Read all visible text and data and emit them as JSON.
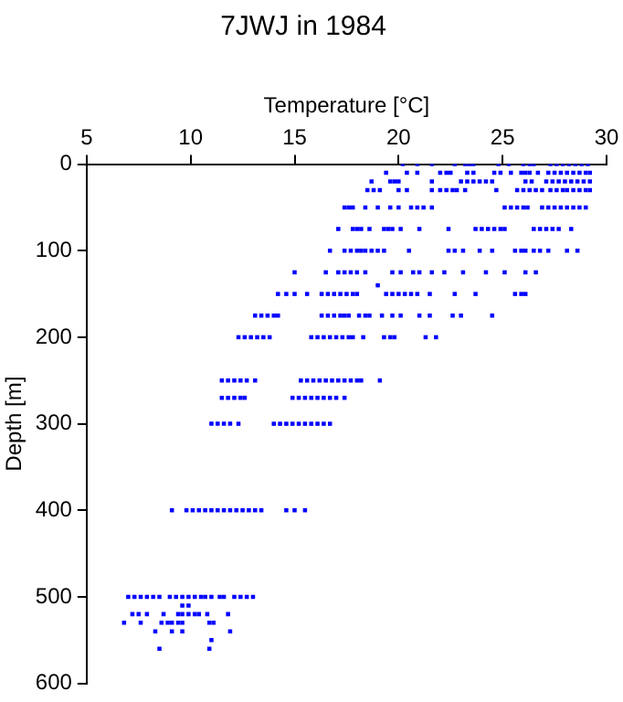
{
  "chart_data": {
    "type": "scatter",
    "title": "7JWJ in 1984",
    "xlabel": "Temperature [°C]",
    "ylabel": "Depth [m]",
    "xlim": [
      5,
      30
    ],
    "xticks": [
      5,
      10,
      15,
      20,
      25,
      30
    ],
    "ylim": [
      600,
      0
    ],
    "yticks": [
      0,
      100,
      200,
      300,
      400,
      500,
      600
    ],
    "grid": false,
    "marker": "square",
    "series": [
      {
        "color": "#0000ff",
        "x": [
          20.2,
          20.9,
          21.6,
          22.7,
          23.2,
          23.4,
          23.6,
          24.8,
          25.3,
          26.0,
          26.3,
          26.5,
          27.3,
          27.6,
          27.9,
          28.2,
          28.5,
          28.8,
          29.1
        ],
        "values": [
          0,
          0,
          0,
          0,
          0,
          0,
          0,
          0,
          0,
          0,
          0,
          0,
          0,
          0,
          0,
          0,
          0,
          0,
          0
        ]
      },
      {
        "color": "#0000ff",
        "x": [
          19.4,
          20.4,
          20.9,
          22.0,
          22.3,
          22.5,
          23.3,
          23.6,
          24.6,
          24.9,
          25.4,
          25.9,
          26.1,
          26.3,
          26.7,
          27.2,
          27.5,
          27.8,
          28.1,
          28.4,
          28.7,
          29.0,
          29.2
        ],
        "values": [
          10,
          10,
          10,
          10,
          10,
          10,
          10,
          10,
          10,
          10,
          10,
          10,
          10,
          10,
          10,
          10,
          10,
          10,
          10,
          10,
          10,
          10,
          10
        ]
      },
      {
        "color": "#0000ff",
        "x": [
          18.7,
          19.6,
          19.8,
          20.0,
          21.6,
          23.0,
          23.3,
          23.6,
          23.9,
          24.2,
          24.5,
          26.1,
          26.4,
          27.1,
          27.4,
          27.7,
          28.0,
          28.3,
          28.6,
          28.9,
          29.2
        ],
        "values": [
          20,
          20,
          20,
          20,
          20,
          20,
          20,
          20,
          20,
          20,
          20,
          20,
          20,
          20,
          20,
          20,
          20,
          20,
          20,
          20,
          20
        ]
      },
      {
        "color": "#0000ff",
        "x": [
          18.5,
          18.8,
          19.1,
          20.0,
          20.4,
          21.6,
          22.0,
          22.3,
          22.6,
          22.8,
          23.2,
          24.7,
          25.7,
          26.0,
          26.3,
          26.6,
          26.9,
          27.3,
          27.6,
          27.9,
          28.1,
          28.4,
          28.7,
          29.0,
          29.2
        ],
        "values": [
          30,
          30,
          30,
          30,
          30,
          30,
          30,
          30,
          30,
          30,
          30,
          30,
          30,
          30,
          30,
          30,
          30,
          30,
          30,
          30,
          30,
          30,
          30,
          30,
          30
        ]
      },
      {
        "color": "#0000ff",
        "x": [
          17.4,
          17.6,
          17.8,
          18.4,
          19.0,
          19.6,
          20.0,
          20.6,
          20.9,
          21.2,
          21.6,
          25.1,
          25.4,
          25.7,
          26.0,
          26.2,
          26.9,
          27.2,
          27.5,
          27.8,
          28.1,
          28.4,
          28.7,
          29.0
        ],
        "values": [
          50,
          50,
          50,
          50,
          50,
          50,
          50,
          50,
          50,
          50,
          50,
          50,
          50,
          50,
          50,
          50,
          50,
          50,
          50,
          50,
          50,
          50,
          50,
          50
        ]
      },
      {
        "color": "#0000ff",
        "x": [
          17.1,
          17.8,
          18.0,
          18.2,
          18.6,
          19.3,
          19.5,
          19.7,
          20.1,
          21.0,
          22.4,
          23.7,
          24.0,
          24.3,
          24.6,
          24.9,
          25.1,
          26.5,
          26.8,
          27.1,
          27.4,
          27.7,
          28.3
        ],
        "values": [
          75,
          75,
          75,
          75,
          75,
          75,
          75,
          75,
          75,
          75,
          75,
          75,
          75,
          75,
          75,
          75,
          75,
          75,
          75,
          75,
          75,
          75,
          75
        ]
      },
      {
        "color": "#0000ff",
        "x": [
          16.7,
          17.4,
          17.7,
          18.0,
          18.2,
          18.4,
          18.7,
          19.0,
          19.3,
          20.5,
          22.4,
          22.7,
          23.1,
          23.9,
          24.5,
          25.6,
          25.9,
          26.1,
          26.5,
          26.8,
          27.2,
          28.1,
          28.6
        ],
        "values": [
          100,
          100,
          100,
          100,
          100,
          100,
          100,
          100,
          100,
          100,
          100,
          100,
          100,
          100,
          100,
          100,
          100,
          100,
          100,
          100,
          100,
          100,
          100
        ]
      },
      {
        "color": "#0000ff",
        "x": [
          15.0,
          16.5,
          17.1,
          17.4,
          17.7,
          18.0,
          18.4,
          19.7,
          20.1,
          20.7,
          21.0,
          21.6,
          22.2,
          23.1,
          24.2,
          25.1,
          26.1,
          26.6
        ],
        "values": [
          125,
          125,
          125,
          125,
          125,
          125,
          125,
          125,
          125,
          125,
          125,
          125,
          125,
          125,
          125,
          125,
          125,
          125
        ]
      },
      {
        "color": "#0000ff",
        "x": [
          19.0
        ],
        "values": [
          140
        ]
      },
      {
        "color": "#0000ff",
        "x": [
          14.2,
          14.6,
          15.0,
          15.6,
          16.3,
          16.6,
          16.9,
          17.2,
          17.5,
          17.8,
          18.0,
          19.4,
          19.7,
          20.0,
          20.3,
          20.6,
          20.9,
          21.5,
          22.7,
          23.7,
          25.6,
          25.9,
          26.1
        ],
        "values": [
          150,
          150,
          150,
          150,
          150,
          150,
          150,
          150,
          150,
          150,
          150,
          150,
          150,
          150,
          150,
          150,
          150,
          150,
          150,
          150,
          150,
          150,
          150
        ]
      },
      {
        "color": "#0000ff",
        "x": [
          13.1,
          13.4,
          13.7,
          14.0,
          14.2,
          16.3,
          16.6,
          16.9,
          17.2,
          17.4,
          17.6,
          18.1,
          18.4,
          18.6,
          19.2,
          19.7,
          20.1,
          21.0,
          21.5,
          22.6,
          23.0,
          24.5
        ],
        "values": [
          175,
          175,
          175,
          175,
          175,
          175,
          175,
          175,
          175,
          175,
          175,
          175,
          175,
          175,
          175,
          175,
          175,
          175,
          175,
          175,
          175,
          175
        ]
      },
      {
        "color": "#0000ff",
        "x": [
          12.3,
          12.6,
          12.9,
          13.2,
          13.5,
          13.8,
          15.8,
          16.1,
          16.4,
          16.7,
          17.0,
          17.3,
          17.6,
          17.8,
          18.3,
          19.3,
          19.6,
          19.8,
          21.3,
          21.8
        ],
        "values": [
          200,
          200,
          200,
          200,
          200,
          200,
          200,
          200,
          200,
          200,
          200,
          200,
          200,
          200,
          200,
          200,
          200,
          200,
          200,
          200
        ]
      },
      {
        "color": "#0000ff",
        "x": [
          11.5,
          11.8,
          12.1,
          12.4,
          12.7,
          13.1,
          15.3,
          15.6,
          15.9,
          16.2,
          16.5,
          16.8,
          17.1,
          17.4,
          17.7,
          18.0,
          18.2,
          19.1
        ],
        "values": [
          250,
          250,
          250,
          250,
          250,
          250,
          250,
          250,
          250,
          250,
          250,
          250,
          250,
          250,
          250,
          250,
          250,
          250
        ]
      },
      {
        "color": "#0000ff",
        "x": [
          11.5,
          11.8,
          12.1,
          12.4,
          12.6,
          14.9,
          15.2,
          15.5,
          15.8,
          16.1,
          16.4,
          16.7,
          17.0,
          17.4
        ],
        "values": [
          270,
          270,
          270,
          270,
          270,
          270,
          270,
          270,
          270,
          270,
          270,
          270,
          270,
          270
        ]
      },
      {
        "color": "#0000ff",
        "x": [
          11.0,
          11.3,
          11.6,
          11.9,
          12.3,
          14.0,
          14.3,
          14.6,
          14.9,
          15.2,
          15.5,
          15.8,
          16.1,
          16.4,
          16.7
        ],
        "values": [
          300,
          300,
          300,
          300,
          300,
          300,
          300,
          300,
          300,
          300,
          300,
          300,
          300,
          300,
          300
        ]
      },
      {
        "color": "#0000ff",
        "x": [
          9.1,
          9.8,
          10.1,
          10.4,
          10.7,
          11.0,
          11.3,
          11.6,
          11.9,
          12.2,
          12.5,
          12.8,
          13.1,
          13.4,
          14.6,
          15.0,
          15.5
        ],
        "values": [
          400,
          400,
          400,
          400,
          400,
          400,
          400,
          400,
          400,
          400,
          400,
          400,
          400,
          400,
          400,
          400,
          400
        ]
      },
      {
        "color": "#0000ff",
        "x": [
          7.0,
          7.3,
          7.6,
          7.9,
          8.2,
          8.5,
          9.0,
          9.3,
          9.6,
          9.9,
          10.2,
          10.5,
          10.7,
          11.0,
          11.4,
          11.6,
          12.1,
          12.4,
          12.7,
          13.0
        ],
        "values": [
          500,
          500,
          500,
          500,
          500,
          500,
          500,
          500,
          500,
          500,
          500,
          500,
          500,
          500,
          500,
          500,
          500,
          500,
          500,
          500
        ]
      },
      {
        "color": "#0000ff",
        "x": [
          9.6,
          9.9
        ],
        "values": [
          510,
          510
        ]
      },
      {
        "color": "#0000ff",
        "x": [
          7.2,
          7.5,
          7.9,
          8.7,
          9.4,
          9.6,
          9.9,
          10.2,
          10.4,
          10.8,
          11.8
        ],
        "values": [
          520,
          520,
          520,
          520,
          520,
          520,
          520,
          520,
          520,
          520,
          520
        ]
      },
      {
        "color": "#0000ff",
        "x": [
          6.8,
          7.6,
          8.6,
          8.9,
          9.1,
          9.4,
          9.6,
          10.9,
          11.1
        ],
        "values": [
          530,
          530,
          530,
          530,
          530,
          530,
          530,
          530,
          530
        ]
      },
      {
        "color": "#0000ff",
        "x": [
          8.3,
          9.1,
          9.6,
          11.9
        ],
        "values": [
          540,
          540,
          540,
          540
        ]
      },
      {
        "color": "#0000ff",
        "x": [
          11.0
        ],
        "values": [
          550
        ]
      },
      {
        "color": "#0000ff",
        "x": [
          8.5,
          10.9
        ],
        "values": [
          560,
          560
        ]
      }
    ]
  }
}
